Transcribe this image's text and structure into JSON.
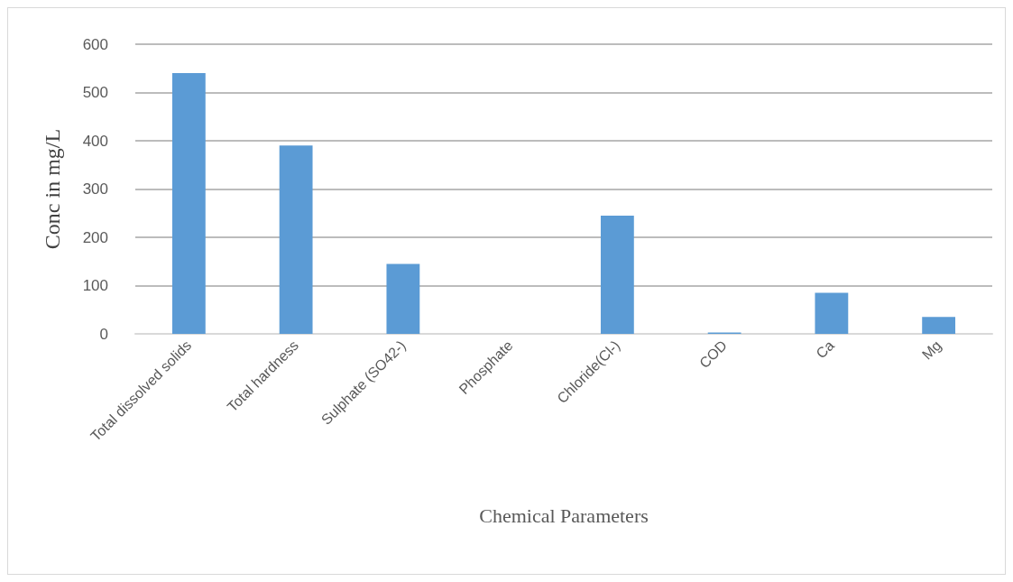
{
  "chart_data": {
    "type": "bar",
    "xlabel": "Chemical Parameters",
    "ylabel": "Conc in mg/L",
    "categories": [
      "Total dissolved solids",
      "Total hardness",
      "Sulphate (SO42-)",
      "Phosphate",
      "Chloride(Cl-)",
      "COD",
      "Ca",
      "Mg"
    ],
    "values": [
      540,
      390,
      145,
      0,
      245,
      3,
      85,
      35
    ],
    "color": "#5b9bd5",
    "ylim": [
      0,
      600
    ],
    "yticks": [
      0,
      100,
      200,
      300,
      400,
      500,
      600
    ],
    "grid": "y"
  }
}
